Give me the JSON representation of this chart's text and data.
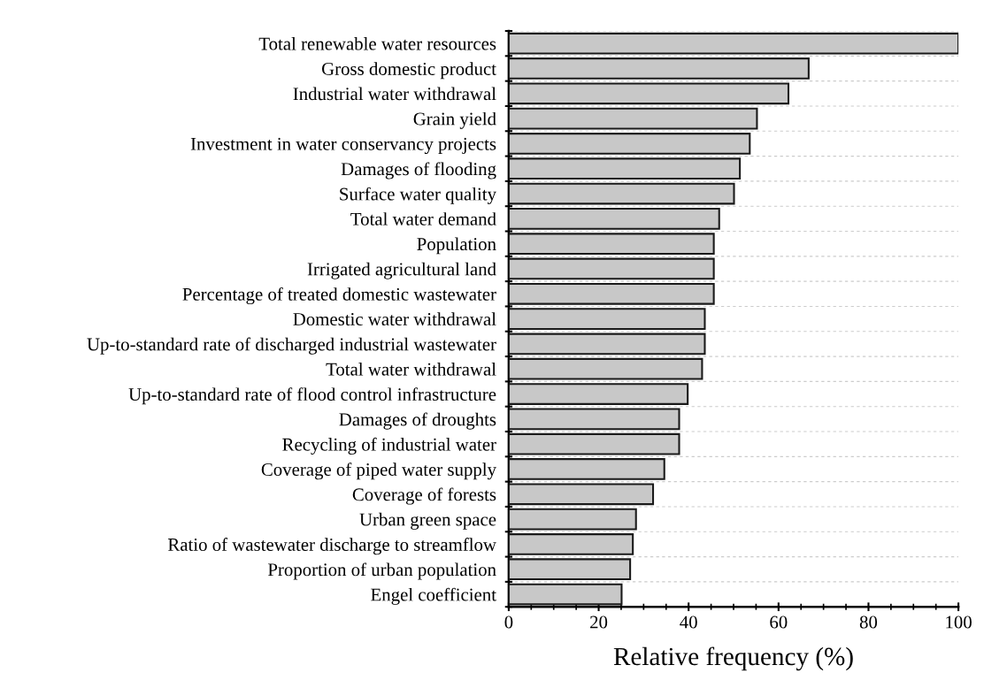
{
  "chart_data": {
    "type": "bar",
    "orientation": "horizontal",
    "xlabel": "Relative frequency (%)",
    "categories": [
      "Total renewable water resources",
      "Gross domestic product",
      "Industrial water withdrawal",
      "Grain yield",
      "Investment in water conservancy projects",
      "Damages of flooding",
      "Surface water quality",
      "Total water demand",
      "Population",
      "Irrigated agricultural land",
      "Percentage of treated domestic wastewater",
      "Domestic water withdrawal",
      "Up-to-standard rate of discharged industrial wastewater",
      "Total water withdrawal",
      "Up-to-standard rate of flood control infrastructure",
      "Damages of droughts",
      "Recycling of industrial water",
      "Coverage of piped water supply",
      "Coverage of forests",
      "Urban green space",
      "Ratio of wastewater discharge to streamflow",
      "Proportion of urban population",
      "Engel coefficient"
    ],
    "values": [
      100,
      66.7,
      62.2,
      55.2,
      53.6,
      51.4,
      50.1,
      46.8,
      45.6,
      45.6,
      45.6,
      43.6,
      43.6,
      43.0,
      39.8,
      37.9,
      37.9,
      34.6,
      32.1,
      28.3,
      27.6,
      27.0,
      25.1
    ],
    "color": "#c8c8c8",
    "xlim": [
      0,
      100
    ],
    "xticks": [
      0,
      20,
      40,
      60,
      80,
      100
    ],
    "grid": "y",
    "legend": false
  }
}
